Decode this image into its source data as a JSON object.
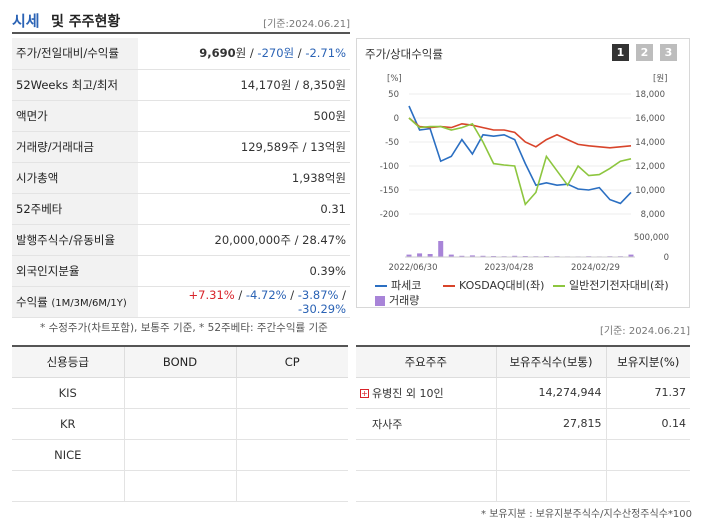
{
  "header": {
    "title_main": "시세",
    "title_rest": "및 주주현황",
    "date": "[기준:2024.06.21]"
  },
  "info_rows": [
    {
      "label": "주가/전일대비/수익률",
      "price": "9,690",
      "unit": "원",
      "sep1": " / ",
      "change": "-270",
      "change_unit": "원",
      "sep2": " / ",
      "rate": "-2.71%"
    },
    {
      "label": "52Weeks 최고/최저",
      "value": "14,170원 / 8,350원"
    },
    {
      "label": "액면가",
      "value": "500원"
    },
    {
      "label": "거래량/거래대금",
      "value": "129,589주 / 13억원"
    },
    {
      "label": "시가총액",
      "value": "1,938억원"
    },
    {
      "label": "52주베타",
      "value": "0.31"
    },
    {
      "label": "발행주식수/유동비율",
      "value": "20,000,000주 / 28.47%"
    },
    {
      "label": "외국인지분율",
      "value": "0.39%"
    },
    {
      "label": "수익률",
      "label_sub": "(1M/3M/6M/1Y)",
      "r1": "+7.31%",
      "sep": "/",
      "r2": "-4.72%",
      "r3": "-3.87%",
      "r4": "-30.29%"
    }
  ],
  "note1": "* 수정주가(차트포함), 보통주 기준, * 52주베타: 주간수익률 기준",
  "chart_panel": {
    "title": "주가/상대수익률",
    "pages": [
      "1",
      "2",
      "3"
    ],
    "active_page": "1"
  },
  "chart_data": {
    "type": "line",
    "x_ticks": [
      "2022/06/30",
      "2023/04/28",
      "2024/02/29"
    ],
    "left_axis": {
      "unit": "[%]",
      "ticks": [
        "50",
        "0",
        "-50",
        "-100",
        "-150",
        "-200"
      ],
      "range": [
        -200,
        50
      ]
    },
    "right_axis": {
      "unit": "[원]",
      "ticks": [
        "18,000",
        "16,000",
        "14,000",
        "12,000",
        "10,000",
        "8,000"
      ],
      "range": [
        8000,
        18000
      ]
    },
    "volume_axis": {
      "ticks": [
        "500,000",
        "0"
      ],
      "range": [
        0,
        500000
      ]
    },
    "series": [
      {
        "name": "파세코",
        "color": "#2b6fc2",
        "values": [
          25,
          -25,
          -22,
          -90,
          -80,
          -45,
          -75,
          -35,
          -38,
          -35,
          -45,
          -95,
          -140,
          -135,
          -140,
          -138,
          -148,
          -150,
          -145,
          -170,
          -178,
          -155
        ]
      },
      {
        "name": "KOSDAQ대비(좌)",
        "color": "#d8442a",
        "values": [
          0,
          -18,
          -20,
          -18,
          -20,
          -12,
          -15,
          -20,
          -25,
          -25,
          -30,
          -50,
          -60,
          -45,
          -35,
          -45,
          -55,
          -58,
          -60,
          -62,
          -60,
          -58
        ]
      },
      {
        "name": "일반전기전자대비(좌)",
        "color": "#8dc63f",
        "values": [
          0,
          -20,
          -18,
          -18,
          -25,
          -20,
          -12,
          -50,
          -95,
          -98,
          -100,
          -180,
          -155,
          -80,
          -110,
          -140,
          -100,
          -120,
          -118,
          -105,
          -90,
          -85
        ]
      }
    ],
    "volume_name": "거래량",
    "volume_color": "#a884d8",
    "volume_values": [
      60000,
      90000,
      75000,
      400000,
      60000,
      30000,
      40000,
      30000,
      25000,
      20000,
      30000,
      25000,
      20000,
      25000,
      20000,
      15000,
      15000,
      20000,
      15000,
      20000,
      20000,
      60000
    ]
  },
  "date2": "[기준: 2024.06.21]",
  "credit": {
    "headers": [
      "신용등급",
      "BOND",
      "CP"
    ],
    "rows": [
      [
        "KIS",
        "",
        ""
      ],
      [
        "KR",
        "",
        ""
      ],
      [
        "NICE",
        "",
        ""
      ],
      [
        "",
        "",
        ""
      ]
    ]
  },
  "holders": {
    "headers": [
      "주요주주",
      "보유주식수(보통)",
      "보유지분(%)"
    ],
    "rows": [
      {
        "name": "유병진 외 10인",
        "shares": "14,274,944",
        "pct": "71.37",
        "expandable": true
      },
      {
        "name": "자사주",
        "shares": "27,815",
        "pct": "0.14",
        "expandable": false
      },
      {
        "name": "",
        "shares": "",
        "pct": "",
        "expandable": false
      },
      {
        "name": "",
        "shares": "",
        "pct": "",
        "expandable": false
      }
    ]
  },
  "note2": "* 보유지분 : 보유지분주식수/지수산정주식수*100"
}
